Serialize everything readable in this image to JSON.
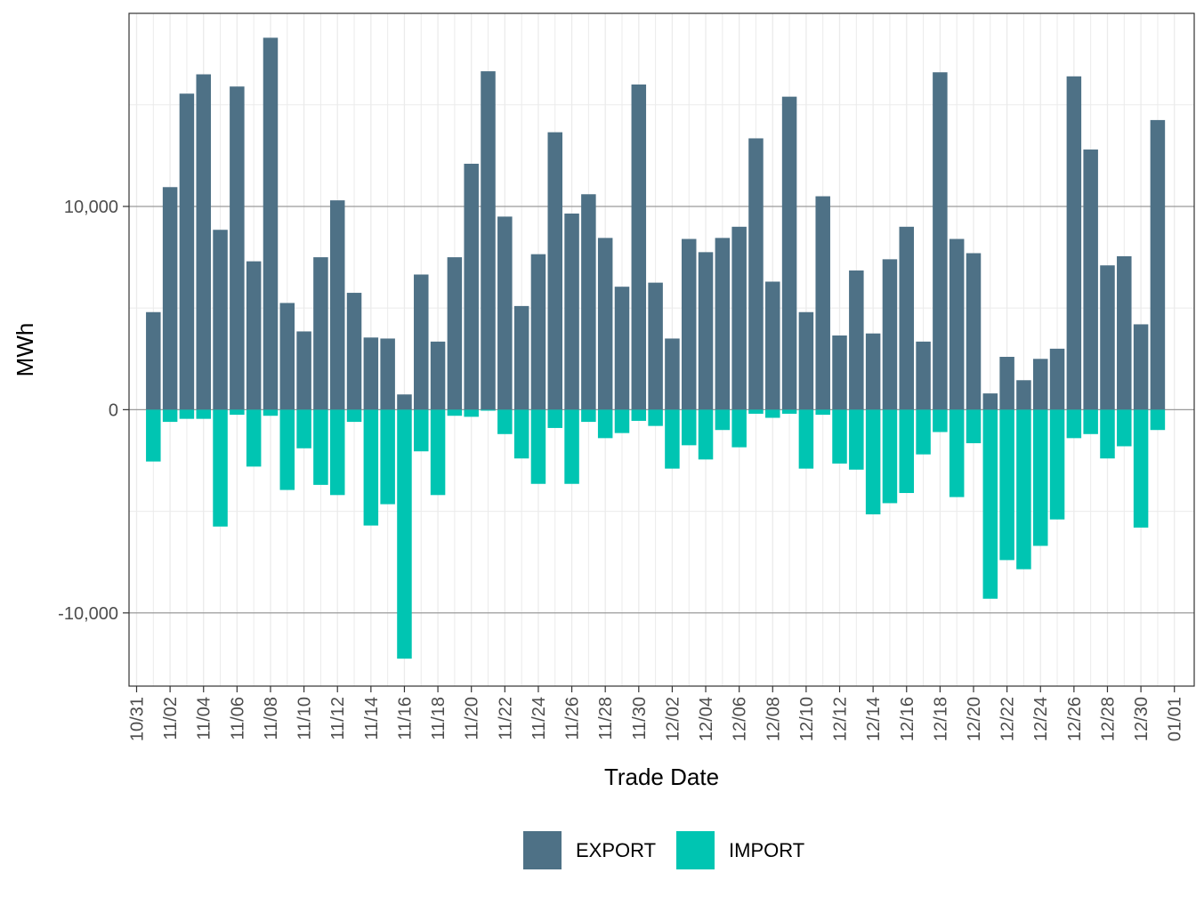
{
  "chart_data": {
    "type": "bar",
    "xlabel": "Trade Date",
    "ylabel": "MWh",
    "ylim": [
      -13600,
      19500
    ],
    "y_ticks": [
      -10000,
      0,
      10000
    ],
    "y_tick_labels": [
      "-10,000",
      "0",
      "10,000"
    ],
    "x_tick_labels": [
      "10/31",
      "11/02",
      "11/04",
      "11/06",
      "11/08",
      "11/10",
      "11/12",
      "11/14",
      "11/16",
      "11/18",
      "11/20",
      "11/22",
      "11/24",
      "11/26",
      "11/28",
      "11/30",
      "12/02",
      "12/04",
      "12/06",
      "12/08",
      "12/10",
      "12/12",
      "12/14",
      "12/16",
      "12/18",
      "12/20",
      "12/22",
      "12/24",
      "12/26",
      "12/28",
      "12/30",
      "01/01"
    ],
    "categories": [
      "11/01",
      "11/02",
      "11/03",
      "11/04",
      "11/05",
      "11/06",
      "11/07",
      "11/08",
      "11/09",
      "11/10",
      "11/11",
      "11/12",
      "11/13",
      "11/14",
      "11/15",
      "11/16",
      "11/17",
      "11/18",
      "11/19",
      "11/20",
      "11/21",
      "11/22",
      "11/23",
      "11/24",
      "11/25",
      "11/26",
      "11/27",
      "11/28",
      "11/29",
      "11/30",
      "12/01",
      "12/02",
      "12/03",
      "12/04",
      "12/05",
      "12/06",
      "12/07",
      "12/08",
      "12/09",
      "12/10",
      "12/11",
      "12/12",
      "12/13",
      "12/14",
      "12/15",
      "12/16",
      "12/17",
      "12/18",
      "12/19",
      "12/20",
      "12/21",
      "12/22",
      "12/23",
      "12/24",
      "12/25",
      "12/26",
      "12/27",
      "12/28",
      "12/29",
      "12/30",
      "12/31"
    ],
    "series": [
      {
        "name": "EXPORT",
        "color": "#4e7186",
        "values": [
          4800,
          10950,
          15550,
          16500,
          8850,
          15900,
          7300,
          18300,
          5250,
          3850,
          7500,
          10300,
          5750,
          3550,
          3500,
          750,
          6650,
          3350,
          7500,
          12100,
          16650,
          9500,
          5100,
          7650,
          13650,
          9650,
          10600,
          8450,
          6050,
          16000,
          6250,
          3500,
          8400,
          7750,
          8450,
          9000,
          13350,
          6300,
          15400,
          4800,
          10500,
          3650,
          6850,
          3750,
          7400,
          9000,
          3350,
          16600,
          8400,
          7700,
          800,
          2600,
          1450,
          2500,
          3000,
          16400,
          12800,
          7100,
          7550,
          4200,
          14250
        ]
      },
      {
        "name": "IMPORT",
        "color": "#00c5b2",
        "values": [
          -2550,
          -600,
          -450,
          -450,
          -5750,
          -250,
          -2800,
          -300,
          -3950,
          -1900,
          -3700,
          -4200,
          -600,
          -5700,
          -4650,
          -12250,
          -2050,
          -4200,
          -300,
          -350,
          -50,
          -1200,
          -2400,
          -3650,
          -900,
          -3650,
          -600,
          -1400,
          -1150,
          -550,
          -800,
          -2900,
          -1750,
          -2450,
          -1000,
          -1850,
          -200,
          -400,
          -200,
          -2900,
          -250,
          -2650,
          -2950,
          -5150,
          -4600,
          -4100,
          -2200,
          -1100,
          -4300,
          -1650,
          -9300,
          -7400,
          -7850,
          -6700,
          -5400,
          -1400,
          -1200,
          -2400,
          -1800,
          -5800,
          -1000
        ]
      }
    ],
    "legend": {
      "position": "bottom",
      "entries": [
        "EXPORT",
        "IMPORT"
      ]
    }
  }
}
